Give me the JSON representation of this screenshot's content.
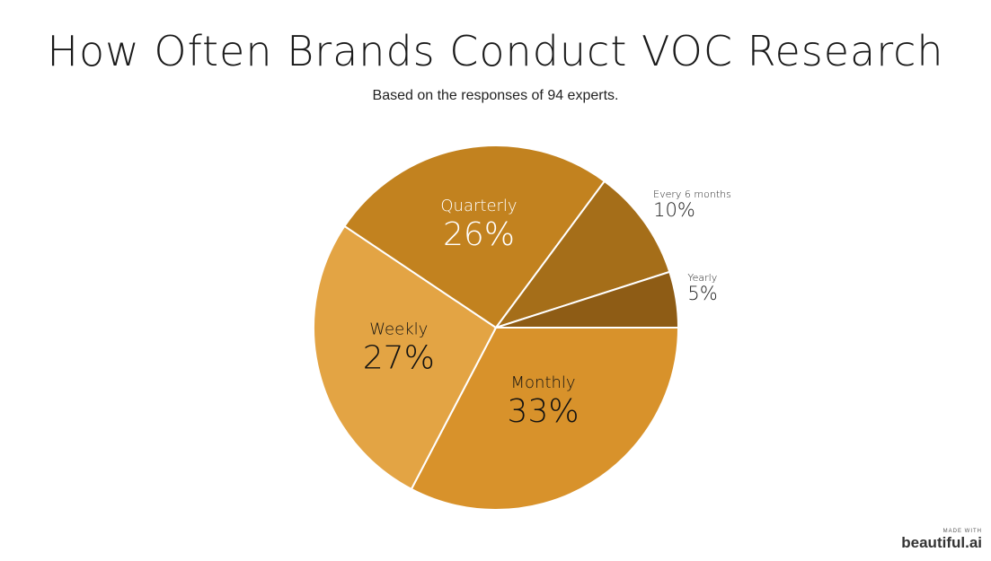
{
  "header": {
    "title": "How Often Brands Conduct VOC Research",
    "subtitle": "Based on the responses of 94 experts."
  },
  "chart_data": {
    "type": "pie",
    "title": "How Often Brands Conduct VOC Research",
    "subtitle": "Based on the responses of 94 experts.",
    "slices": [
      {
        "label": "Monthly",
        "value": 33,
        "value_label": "33%",
        "color": "#D8922B"
      },
      {
        "label": "Weekly",
        "value": 27,
        "value_label": "27%",
        "color": "#E3A444"
      },
      {
        "label": "Quarterly",
        "value": 26,
        "value_label": "26%",
        "color": "#C2821F"
      },
      {
        "label": "Every 6 months",
        "value": 10,
        "value_label": "10%",
        "color": "#A56E19"
      },
      {
        "label": "Yearly",
        "value": 5,
        "value_label": "5%",
        "color": "#8E5C15"
      }
    ]
  },
  "watermark": {
    "small": "MADE WITH",
    "brand": "beautiful.ai"
  }
}
